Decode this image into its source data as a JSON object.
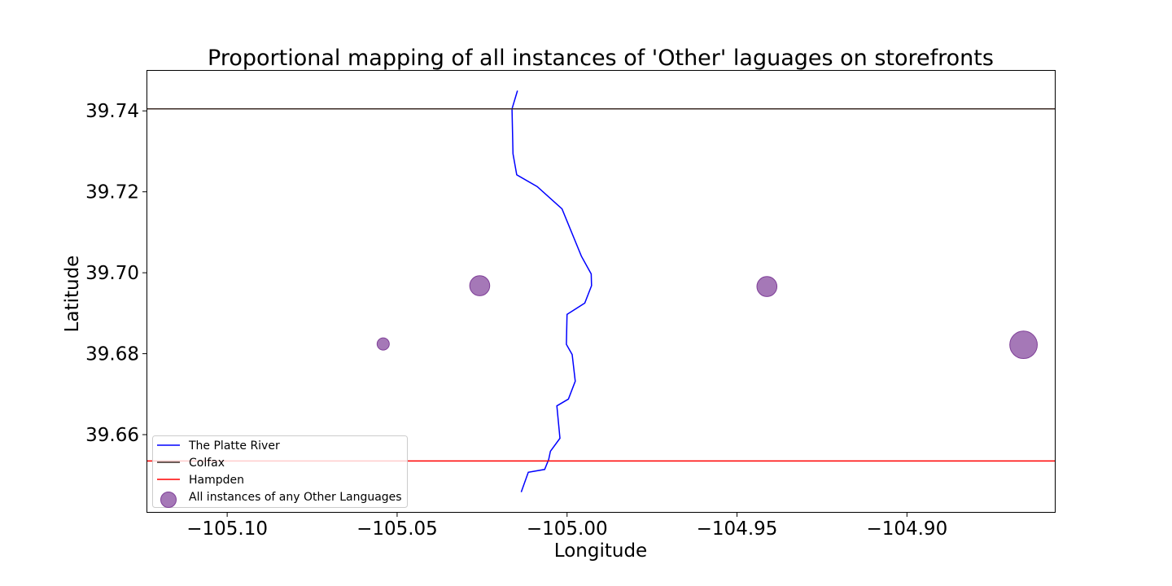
{
  "chart_data": {
    "type": "scatter",
    "title": "Proportional mapping of all instances of 'Other' laguages on storefronts",
    "xlabel": "Longitude",
    "ylabel": "Latitude",
    "xlim": [
      -105.1235,
      -104.8565
    ],
    "ylim": [
      39.6409,
      39.7499
    ],
    "x_ticks": [
      -105.1,
      -105.05,
      -105.0,
      -104.95,
      -104.9
    ],
    "x_tick_labels": [
      "−105.10",
      "−105.05",
      "−105.00",
      "−104.95",
      "−104.90"
    ],
    "y_ticks": [
      39.66,
      39.68,
      39.7,
      39.72,
      39.74
    ],
    "y_tick_labels": [
      "39.66",
      "39.68",
      "39.70",
      "39.72",
      "39.74"
    ],
    "grid": false,
    "legend_position": "lower-left",
    "series": [
      {
        "name": "The Platte River",
        "kind": "line",
        "color": "#0000ff",
        "points": [
          [
            -105.0146,
            39.745
          ],
          [
            -105.0162,
            39.7405
          ],
          [
            -105.0159,
            39.7294
          ],
          [
            -105.0148,
            39.7242
          ],
          [
            -105.0088,
            39.7213
          ],
          [
            -105.0015,
            39.7158
          ],
          [
            -104.9958,
            39.7041
          ],
          [
            -104.9929,
            39.6997
          ],
          [
            -104.9928,
            39.6968
          ],
          [
            -104.9948,
            39.6925
          ],
          [
            -105.0,
            39.6897
          ],
          [
            -105.0002,
            39.6823
          ],
          [
            -104.9985,
            39.6798
          ],
          [
            -104.9976,
            39.6732
          ],
          [
            -104.9996,
            39.6688
          ],
          [
            -105.003,
            39.6671
          ],
          [
            -105.0021,
            39.6591
          ],
          [
            -105.0049,
            39.6559
          ],
          [
            -105.0054,
            39.6539
          ],
          [
            -105.0066,
            39.6514
          ],
          [
            -105.0114,
            39.6507
          ],
          [
            -105.0135,
            39.6458
          ]
        ]
      },
      {
        "name": "Colfax",
        "kind": "hline",
        "color": "#3b2a24",
        "y": 39.7405
      },
      {
        "name": "Hampden",
        "kind": "hline",
        "color": "#ff0000",
        "y": 39.6535
      },
      {
        "name": "All instances of any Other Languages",
        "kind": "scatter",
        "color": "#7f3f98",
        "points": [
          {
            "x": -105.0257,
            "y": 39.6968,
            "count": 3
          },
          {
            "x": -104.9412,
            "y": 39.6966,
            "count": 3
          },
          {
            "x": -105.0541,
            "y": 39.6824,
            "count": 1
          },
          {
            "x": -104.8657,
            "y": 39.6822,
            "count": 6
          }
        ]
      }
    ]
  }
}
